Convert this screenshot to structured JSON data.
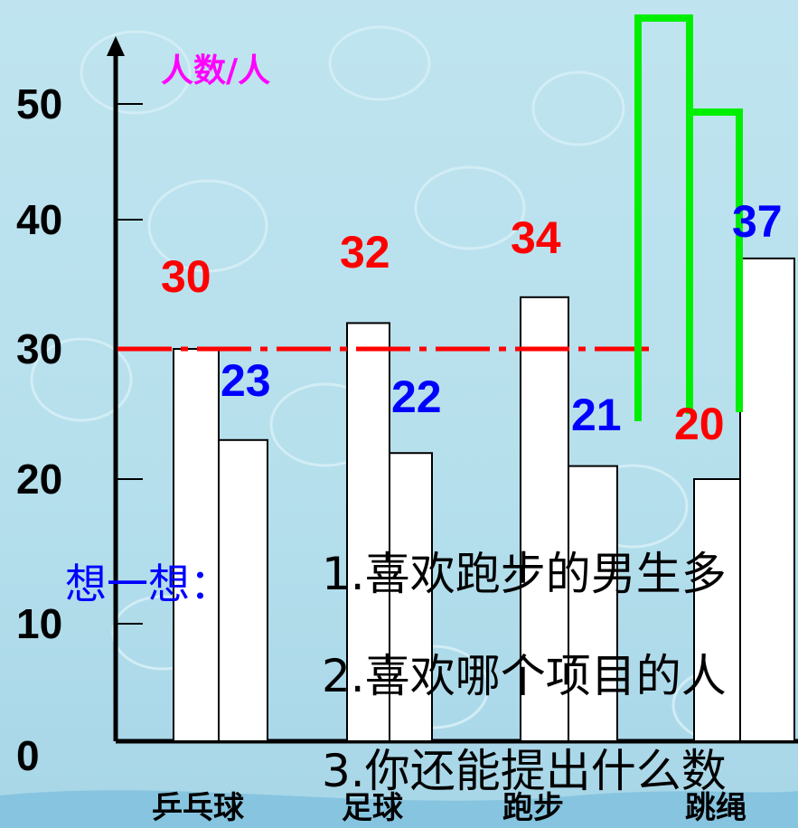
{
  "chart_data": {
    "type": "bar",
    "ylabel": "人数/人",
    "y_ticks": [
      "50",
      "40",
      "30",
      "20",
      "10",
      "0"
    ],
    "ylim": [
      0,
      55
    ],
    "categories": [
      "乒乓球",
      "足球",
      "跑步",
      "跳绳"
    ],
    "series": [
      {
        "values": [
          30,
          32,
          34,
          20
        ],
        "label_color": "#ff0000"
      },
      {
        "values": [
          23,
          22,
          21,
          37
        ],
        "label_color": "#0000ff"
      }
    ],
    "value_labels": [
      [
        "30",
        "32",
        "34",
        "20"
      ],
      [
        "23",
        "22",
        "21",
        "37"
      ]
    ],
    "reference_line": {
      "value": 30,
      "color": "#ff0000",
      "style": "dash-dot"
    },
    "overlay_shape_color": "#00ee00"
  },
  "prompt": "想一想：",
  "questions": [
    "1.喜欢跑步的男生多",
    "2.喜欢哪个项目的人",
    "3.你还能提出什么数"
  ],
  "colors": {
    "background": "#bfe3ee",
    "axis": "#000000"
  }
}
